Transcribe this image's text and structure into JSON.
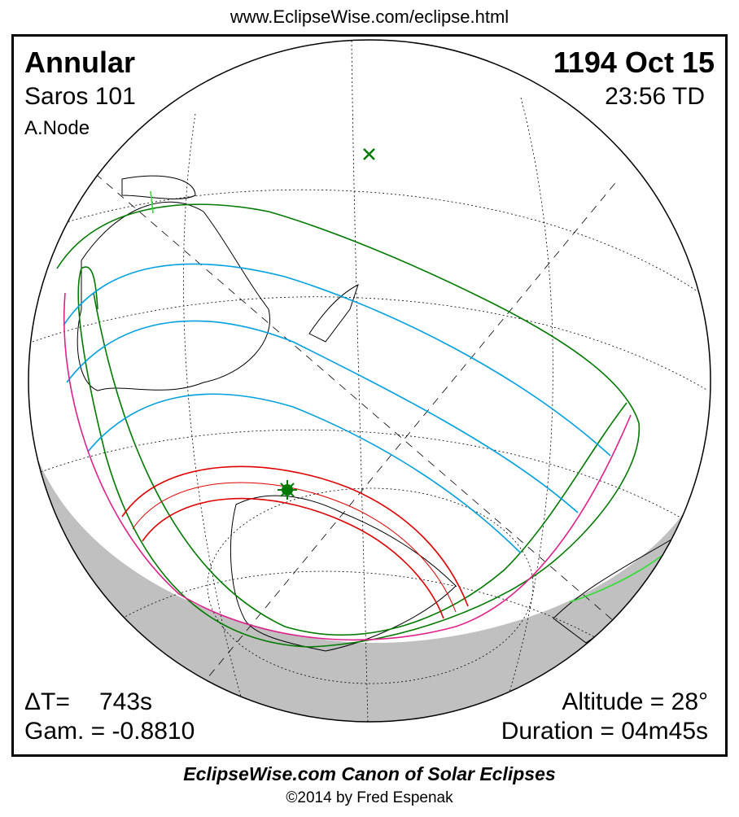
{
  "header": {
    "url": "www.EclipseWise.com/eclipse.html"
  },
  "eclipse": {
    "type": "Annular",
    "date": "1194 Oct 15",
    "saros": "Saros 101",
    "time": "23:56 TD",
    "node": "A.Node",
    "delta_t_label": "ΔT=",
    "delta_t_value": "743s",
    "gamma": "Gam. = -0.8810",
    "altitude": "Altitude = 28°",
    "duration": "Duration = 04m45s"
  },
  "footer": {
    "canon": "EclipseWise.com Canon of Solar Eclipses",
    "copyright": "©2014 by Fred Espenak"
  },
  "colors": {
    "penumbral_limits": "#007a00",
    "partial_magnitude": "#00a0e0",
    "central_path": "#e00000",
    "rise_set": "#e0208a",
    "night_shading": "#c0c0c0",
    "greatest_eclipse": "#007a00"
  }
}
